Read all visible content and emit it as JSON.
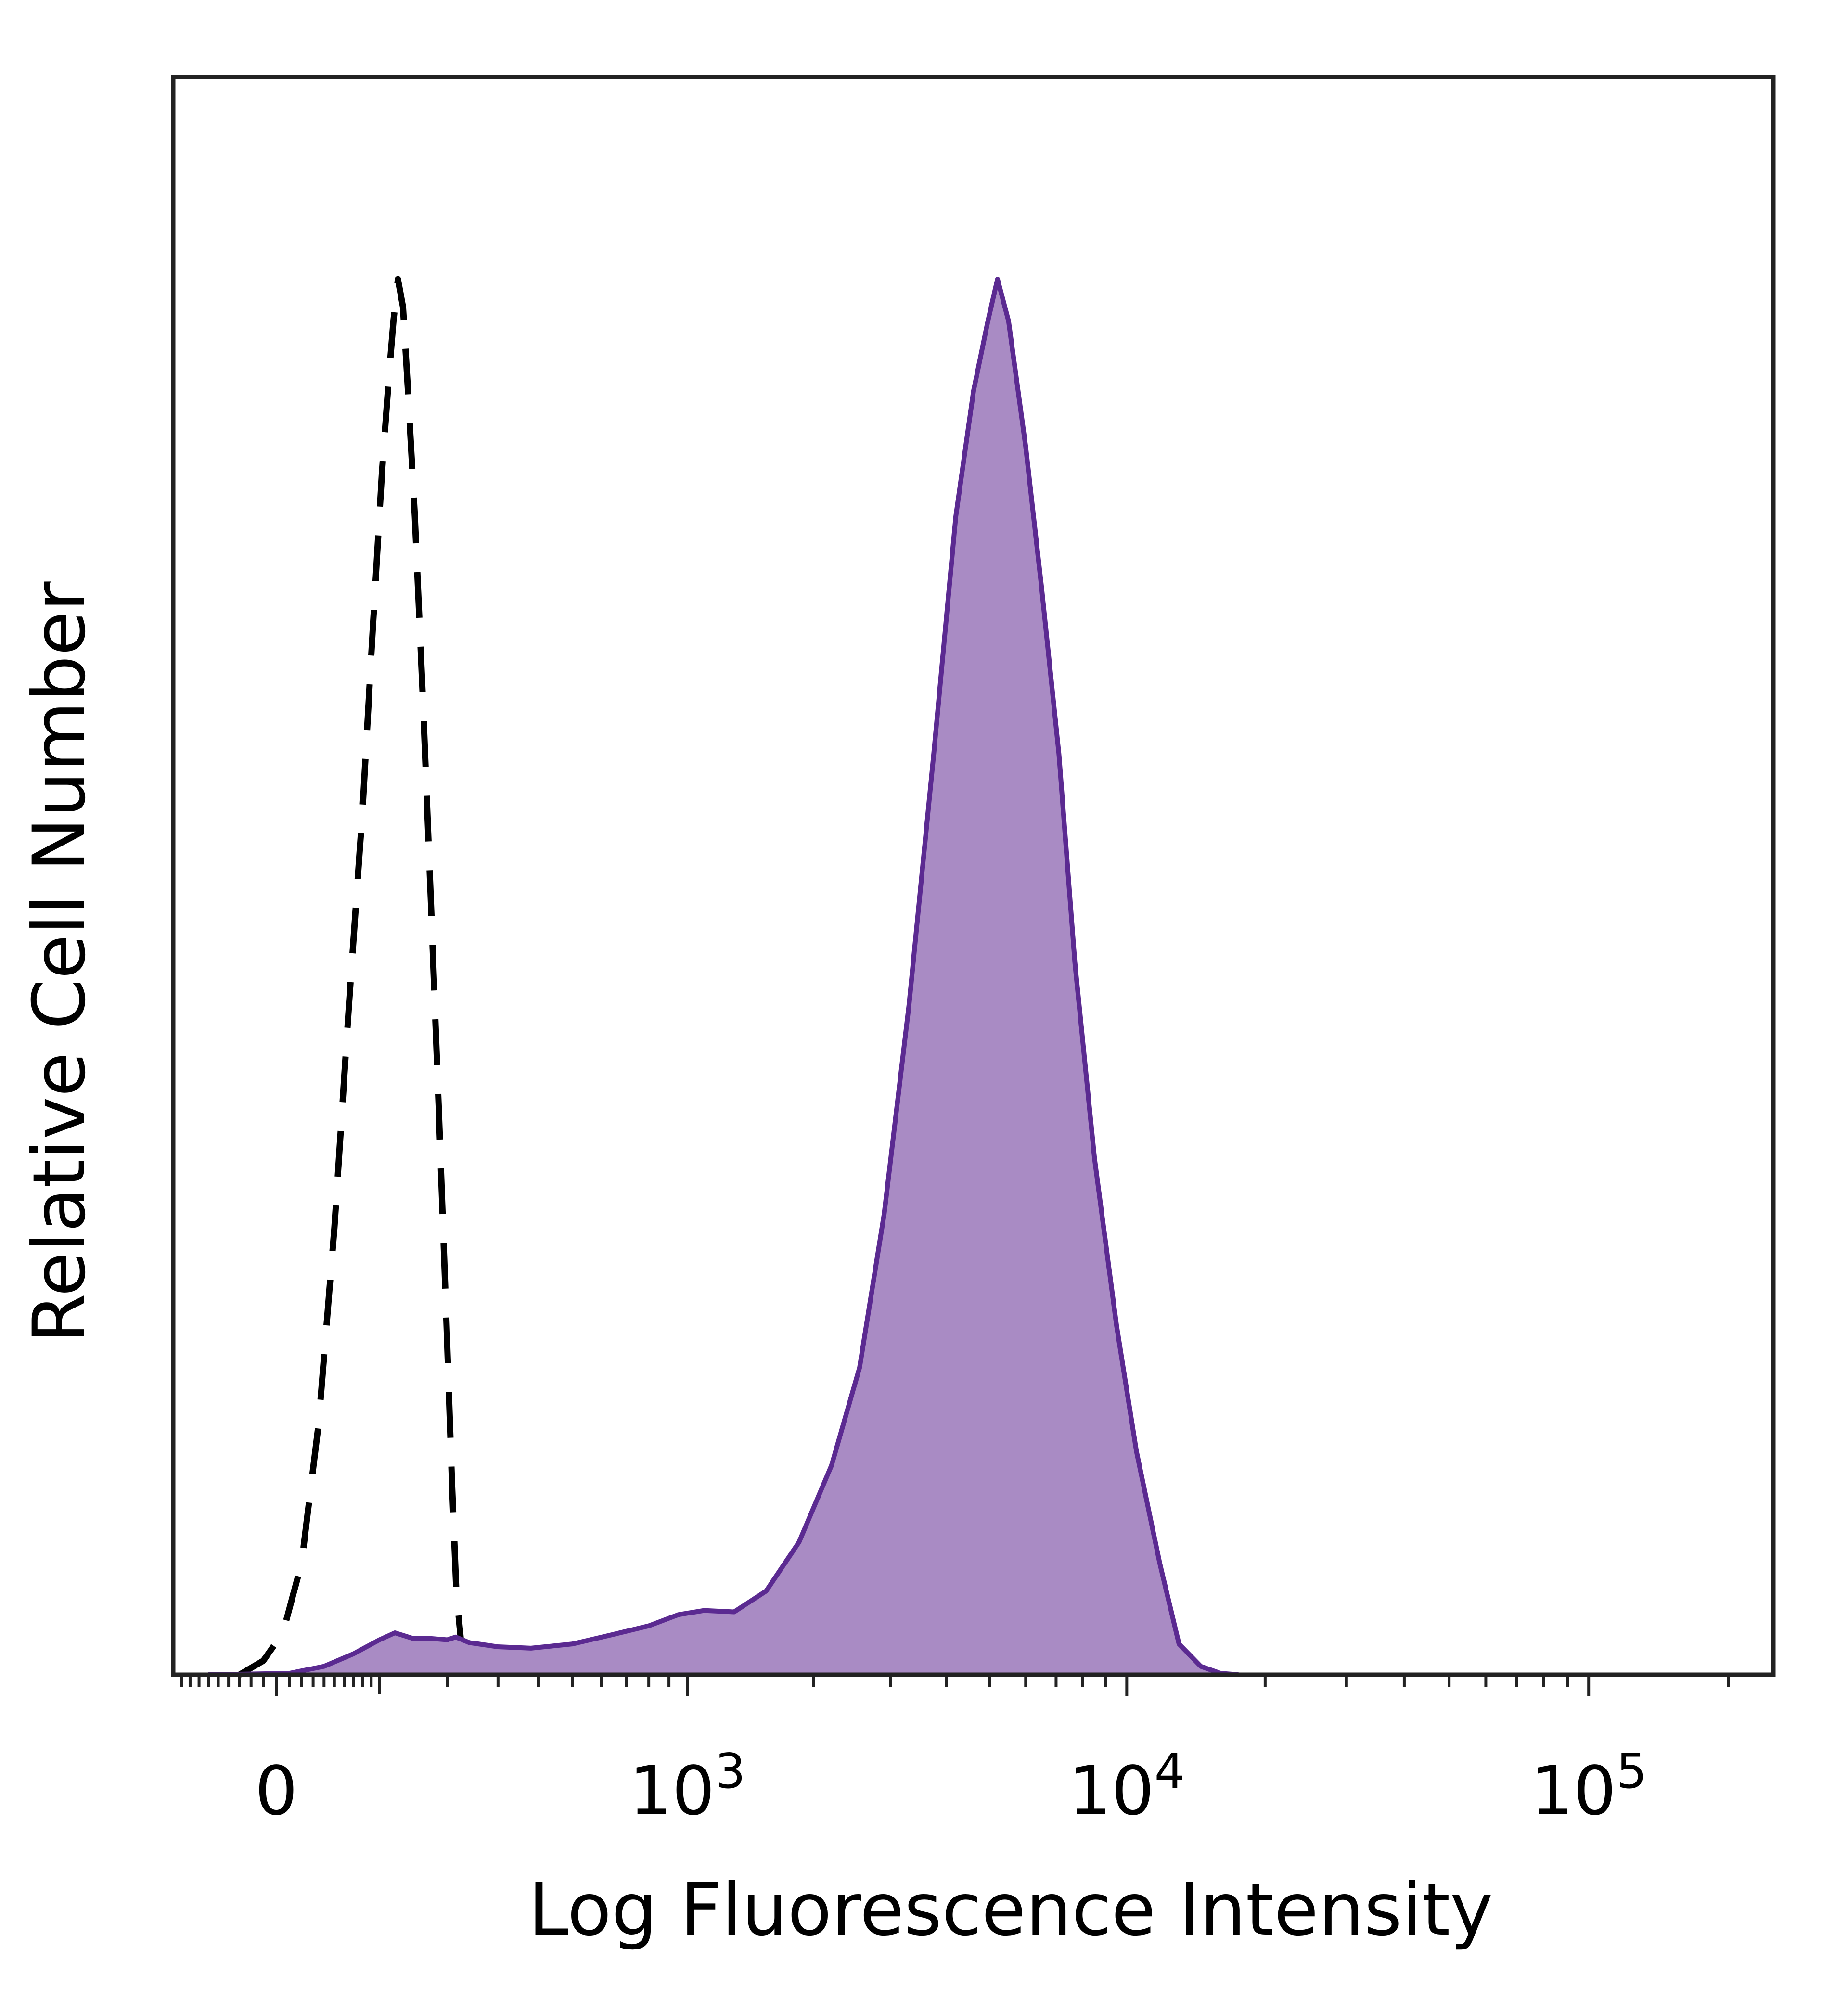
{
  "chart_data": {
    "type": "area",
    "title": "",
    "xlabel": "Log Fluorescence Intensity",
    "ylabel": "Relative Cell Number",
    "x_scale": "biexponential",
    "xlim": [
      -100,
      250000
    ],
    "ylim": [
      0,
      100
    ],
    "x_ticks": [
      {
        "value": 0,
        "label": "0",
        "base": "",
        "exp": ""
      },
      {
        "value": 1000,
        "label": "10^3",
        "base": "10",
        "exp": "3"
      },
      {
        "value": 10000,
        "label": "10^4",
        "base": "10",
        "exp": "4"
      },
      {
        "value": 100000,
        "label": "10^5",
        "base": "10",
        "exp": "5"
      }
    ],
    "grid": false,
    "legend": "none",
    "series": [
      {
        "style": "dashed",
        "color": "#000000",
        "fill": "none",
        "points": [
          [
            -30,
            0
          ],
          [
            -10,
            1
          ],
          [
            5,
            3
          ],
          [
            20,
            8
          ],
          [
            35,
            18
          ],
          [
            50,
            32
          ],
          [
            65,
            48
          ],
          [
            80,
            62
          ],
          [
            92,
            75
          ],
          [
            103,
            86
          ],
          [
            112,
            93
          ],
          [
            118,
            97
          ],
          [
            124,
            100
          ],
          [
            131,
            98
          ],
          [
            138,
            92
          ],
          [
            148,
            83
          ],
          [
            160,
            70
          ],
          [
            173,
            55
          ],
          [
            186,
            40
          ],
          [
            198,
            26
          ],
          [
            208,
            14
          ],
          [
            216,
            6
          ],
          [
            225,
            2.2
          ],
          [
            236,
            1.2
          ],
          [
            248,
            0.4
          ],
          [
            262,
            0
          ]
        ]
      },
      {
        "style": "solid",
        "color": "#5b2a91",
        "fill": "#a98bc4",
        "points": [
          [
            -60,
            0
          ],
          [
            10,
            0.1
          ],
          [
            40,
            0.6
          ],
          [
            70,
            1.5
          ],
          [
            100,
            2.5
          ],
          [
            120,
            3
          ],
          [
            145,
            2.6
          ],
          [
            170,
            2.6
          ],
          [
            200,
            2.5
          ],
          [
            215,
            2.7
          ],
          [
            240,
            2.3
          ],
          [
            300,
            2
          ],
          [
            380,
            1.9
          ],
          [
            500,
            2.2
          ],
          [
            650,
            2.9
          ],
          [
            800,
            3.5
          ],
          [
            950,
            4.3
          ],
          [
            1100,
            4.6
          ],
          [
            1300,
            4.5
          ],
          [
            1550,
            6
          ],
          [
            1850,
            9.5
          ],
          [
            2200,
            15
          ],
          [
            2550,
            22
          ],
          [
            2900,
            33
          ],
          [
            3300,
            48
          ],
          [
            3750,
            66
          ],
          [
            4200,
            83
          ],
          [
            4600,
            92
          ],
          [
            4950,
            97
          ],
          [
            5200,
            100
          ],
          [
            5500,
            97
          ],
          [
            6000,
            88
          ],
          [
            6500,
            78
          ],
          [
            7100,
            66
          ],
          [
            7700,
            51
          ],
          [
            8500,
            37
          ],
          [
            9500,
            25
          ],
          [
            10500,
            16
          ],
          [
            11800,
            8
          ],
          [
            13000,
            2.2
          ],
          [
            14500,
            0.6
          ],
          [
            16000,
            0.1
          ],
          [
            17500,
            0
          ]
        ]
      }
    ]
  }
}
